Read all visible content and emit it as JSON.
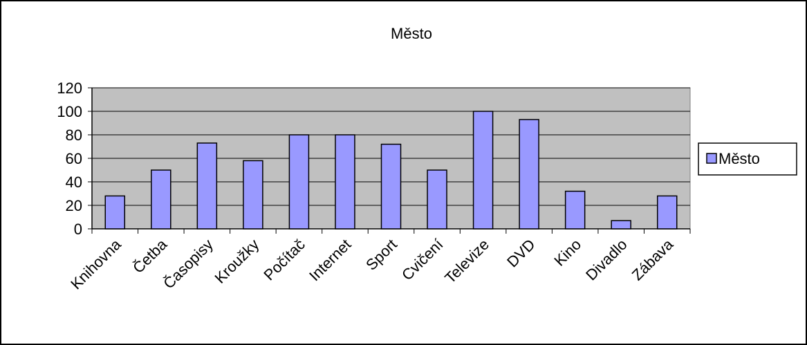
{
  "chart_data": {
    "type": "bar",
    "title": "Město",
    "xlabel": "",
    "ylabel": "",
    "ylim": [
      0,
      120
    ],
    "yticks": [
      0,
      20,
      40,
      60,
      80,
      100,
      120
    ],
    "grid": true,
    "legend_position": "right",
    "categories": [
      "Knihovna",
      "Četba",
      "Časopisy",
      "Kroužky",
      "Počítač",
      "Internet",
      "Sport",
      "Cvičení",
      "Televize",
      "DVD",
      "Kino",
      "Divadlo",
      "Zábava"
    ],
    "series": [
      {
        "name": "Město",
        "values": [
          28,
          50,
          73,
          58,
          80,
          80,
          72,
          50,
          100,
          93,
          32,
          7,
          28
        ]
      }
    ]
  },
  "colors": {
    "bar_fill": "#9999ff",
    "plot_background": "#c0c0c0",
    "frame": "#000000"
  }
}
